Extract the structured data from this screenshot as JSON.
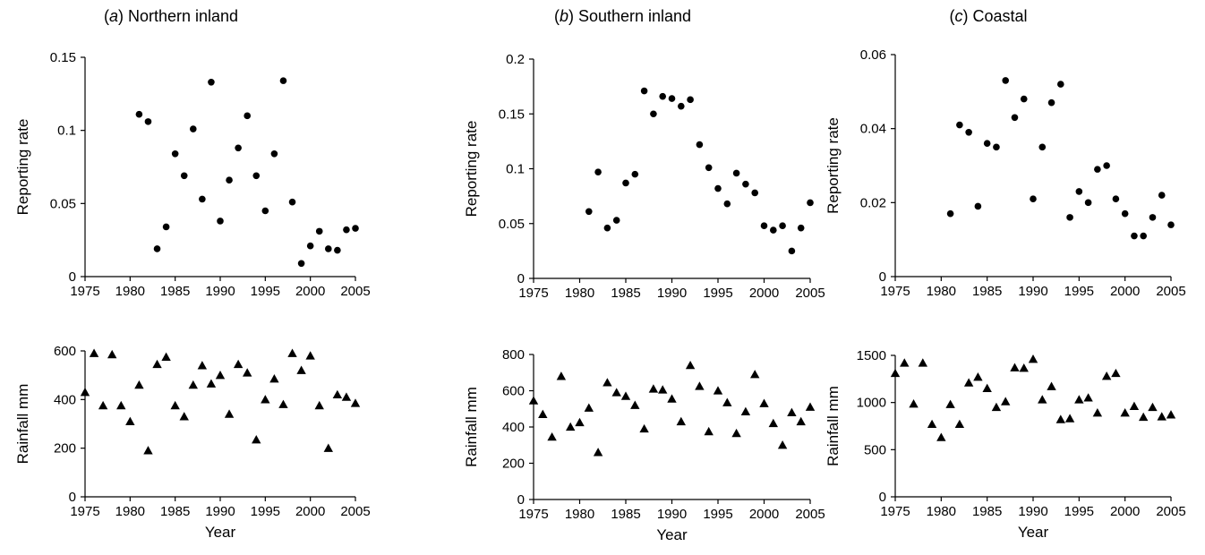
{
  "chart_data": [
    {
      "type": "scatter",
      "panel": "a",
      "title_letter": "a",
      "title_text": " Northern inland",
      "xlabel": "",
      "ylabel": "Reporting rate",
      "xlim": [
        1975,
        2005
      ],
      "ylim": [
        0,
        0.15
      ],
      "xticks": [
        "1975",
        "1980",
        "1985",
        "1990",
        "1995",
        "2000",
        "2005"
      ],
      "yticks": [
        "0",
        "0.05",
        "0.1",
        "0.15"
      ],
      "grid": false,
      "marker": "circle",
      "x": [
        1981,
        1982,
        1983,
        1984,
        1985,
        1986,
        1987,
        1988,
        1989,
        1990,
        1991,
        1992,
        1993,
        1994,
        1995,
        1996,
        1997,
        1998,
        1999,
        2000,
        2001,
        2002,
        2003,
        2004,
        2005
      ],
      "y": [
        0.111,
        0.106,
        0.019,
        0.034,
        0.084,
        0.069,
        0.101,
        0.053,
        0.133,
        0.038,
        0.066,
        0.088,
        0.11,
        0.069,
        0.045,
        0.084,
        0.134,
        0.051,
        0.009,
        0.021,
        0.031,
        0.019,
        0.018,
        0.032,
        0.033
      ]
    },
    {
      "type": "scatter",
      "panel": "b",
      "title_letter": "b",
      "title_text": " Southern inland",
      "xlabel": "",
      "ylabel": "Reporting rate",
      "xlim": [
        1975,
        2005
      ],
      "ylim": [
        0,
        0.2
      ],
      "xticks": [
        "1975",
        "1980",
        "1985",
        "1990",
        "1995",
        "2000",
        "2005"
      ],
      "yticks": [
        "0",
        "0.05",
        "0.1",
        "0.15",
        "0.2"
      ],
      "grid": false,
      "marker": "circle",
      "x": [
        1981,
        1982,
        1983,
        1984,
        1985,
        1986,
        1987,
        1988,
        1989,
        1990,
        1991,
        1992,
        1993,
        1994,
        1995,
        1996,
        1997,
        1998,
        1999,
        2000,
        2001,
        2002,
        2003,
        2004,
        2005
      ],
      "y": [
        0.061,
        0.097,
        0.046,
        0.053,
        0.087,
        0.095,
        0.171,
        0.15,
        0.166,
        0.164,
        0.157,
        0.163,
        0.122,
        0.101,
        0.082,
        0.068,
        0.096,
        0.086,
        0.078,
        0.048,
        0.044,
        0.048,
        0.025,
        0.046,
        0.069
      ]
    },
    {
      "type": "scatter",
      "panel": "c",
      "title_letter": "c",
      "title_text": " Coastal",
      "xlabel": "",
      "ylabel": "Reporting rate",
      "xlim": [
        1975,
        2005
      ],
      "ylim": [
        0,
        0.06
      ],
      "xticks": [
        "1975",
        "1980",
        "1985",
        "1990",
        "1995",
        "2000",
        "2005"
      ],
      "yticks": [
        "0",
        "0.02",
        "0.04",
        "0.06"
      ],
      "grid": false,
      "marker": "circle",
      "x": [
        1981,
        1982,
        1983,
        1984,
        1985,
        1986,
        1987,
        1988,
        1989,
        1990,
        1991,
        1992,
        1993,
        1994,
        1995,
        1996,
        1997,
        1998,
        1999,
        2000,
        2001,
        2002,
        2003,
        2004,
        2005
      ],
      "y": [
        0.017,
        0.041,
        0.039,
        0.019,
        0.036,
        0.035,
        0.053,
        0.043,
        0.048,
        0.021,
        0.035,
        0.047,
        0.052,
        0.016,
        0.023,
        0.02,
        0.029,
        0.03,
        0.021,
        0.017,
        0.011,
        0.011,
        0.016,
        0.022,
        0.014
      ]
    },
    {
      "type": "scatter",
      "panel": "a-rain",
      "xlabel": "Year",
      "ylabel": "Rainfall mm",
      "xlim": [
        1975,
        2005
      ],
      "ylim": [
        0,
        600
      ],
      "xticks": [
        "1975",
        "1980",
        "1985",
        "1990",
        "1995",
        "2000",
        "2005"
      ],
      "yticks": [
        "0",
        "200",
        "400",
        "600"
      ],
      "grid": false,
      "marker": "triangle",
      "x": [
        1975,
        1976,
        1977,
        1978,
        1979,
        1980,
        1981,
        1982,
        1983,
        1984,
        1985,
        1986,
        1987,
        1988,
        1989,
        1990,
        1991,
        1992,
        1993,
        1994,
        1995,
        1996,
        1997,
        1998,
        1999,
        2000,
        2001,
        2002,
        2003,
        2004,
        2005
      ],
      "y": [
        430,
        590,
        375,
        585,
        375,
        310,
        460,
        190,
        545,
        575,
        375,
        330,
        460,
        540,
        465,
        500,
        340,
        545,
        510,
        235,
        400,
        485,
        380,
        590,
        520,
        580,
        375,
        200,
        420,
        410,
        385
      ]
    },
    {
      "type": "scatter",
      "panel": "b-rain",
      "xlabel": "Year",
      "ylabel": "Rainfall mm",
      "xlim": [
        1975,
        2005
      ],
      "ylim": [
        0,
        800
      ],
      "xticks": [
        "1975",
        "1980",
        "1985",
        "1990",
        "1995",
        "2000",
        "2005"
      ],
      "yticks": [
        "0",
        "200",
        "400",
        "600",
        "800"
      ],
      "grid": false,
      "marker": "triangle",
      "x": [
        1975,
        1976,
        1977,
        1978,
        1979,
        1980,
        1981,
        1982,
        1983,
        1984,
        1985,
        1986,
        1987,
        1988,
        1989,
        1990,
        1991,
        1992,
        1993,
        1994,
        1995,
        1996,
        1997,
        1998,
        1999,
        2000,
        2001,
        2002,
        2003,
        2004,
        2005
      ],
      "y": [
        545,
        470,
        345,
        680,
        400,
        425,
        505,
        260,
        645,
        590,
        570,
        520,
        390,
        610,
        605,
        555,
        430,
        740,
        625,
        375,
        600,
        535,
        365,
        485,
        690,
        530,
        420,
        300,
        480,
        430,
        510
      ]
    },
    {
      "type": "scatter",
      "panel": "c-rain",
      "xlabel": "Year",
      "ylabel": "Rainfall mm",
      "xlim": [
        1975,
        2005
      ],
      "ylim": [
        0,
        1500
      ],
      "xticks": [
        "1975",
        "1980",
        "1985",
        "1990",
        "1995",
        "2000",
        "2005"
      ],
      "yticks": [
        "0",
        "500",
        "1000",
        "1500"
      ],
      "grid": false,
      "marker": "triangle",
      "x": [
        1975,
        1976,
        1977,
        1978,
        1979,
        1980,
        1981,
        1982,
        1983,
        1984,
        1985,
        1986,
        1987,
        1988,
        1989,
        1990,
        1991,
        1992,
        1993,
        1994,
        1995,
        1996,
        1997,
        1998,
        1999,
        2000,
        2001,
        2002,
        2003,
        2004,
        2005
      ],
      "y": [
        1310,
        1420,
        985,
        1420,
        770,
        630,
        980,
        770,
        1210,
        1270,
        1150,
        950,
        1010,
        1370,
        1365,
        1460,
        1030,
        1170,
        820,
        830,
        1030,
        1050,
        890,
        1280,
        1310,
        890,
        960,
        845,
        950,
        850,
        870
      ]
    }
  ]
}
